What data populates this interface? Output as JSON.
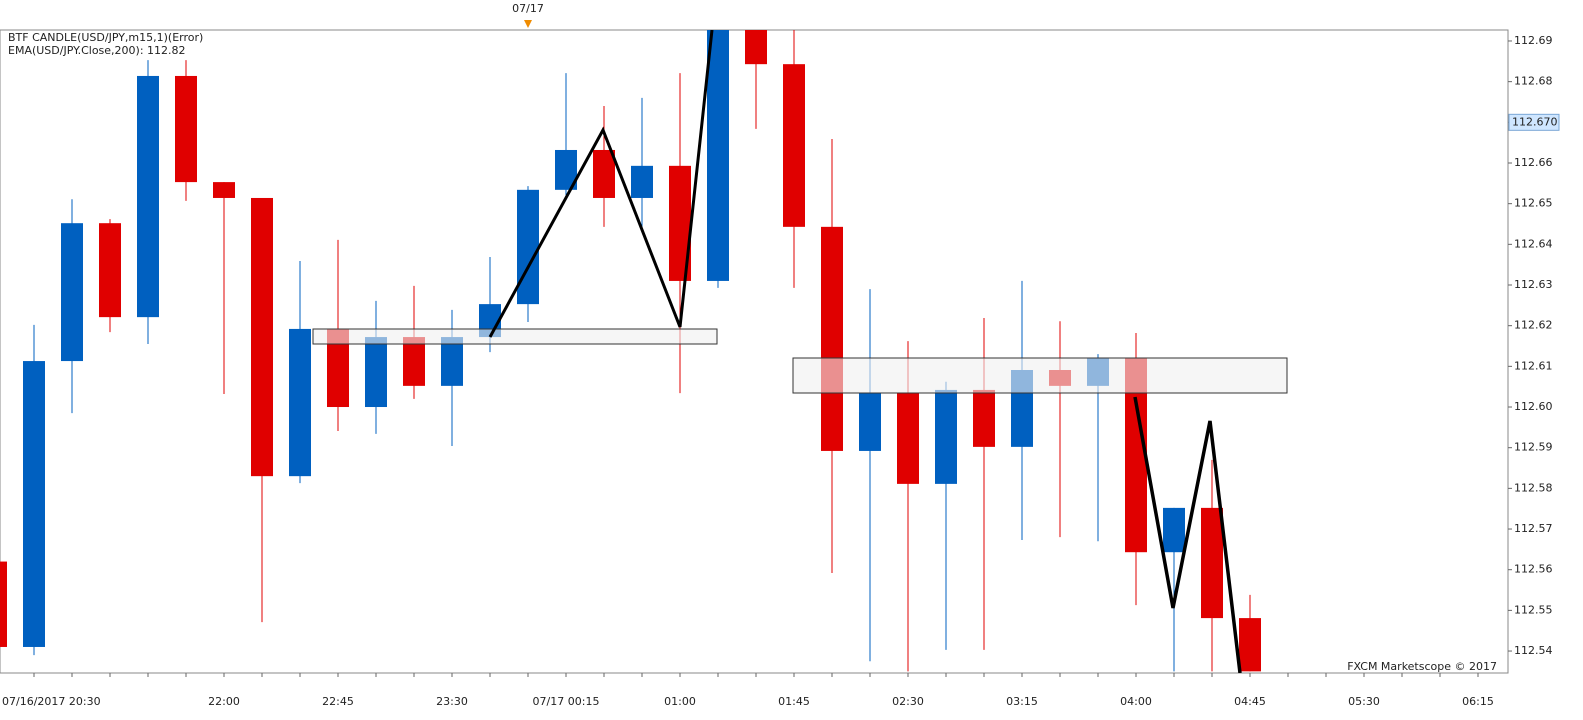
{
  "chart_data": {
    "type": "candlestick",
    "legend_lines": [
      "BTF CANDLE(USD/JPY,m15,1)(Error)",
      "EMA(USD/JPY.Close,200): 112.82"
    ],
    "date_marker": "07/17",
    "watermark": "FXCM Marketscope © 2017",
    "categories": [
      "07/16/2017 20:30",
      null,
      null,
      null,
      null,
      null,
      "22:00",
      null,
      null,
      "22:45",
      null,
      null,
      "23:30",
      null,
      null,
      "07/17 00:15",
      null,
      null,
      "01:00",
      null,
      null,
      "01:45",
      null,
      null,
      "02:30",
      null,
      null,
      "03:15",
      null,
      null,
      "04:00",
      null,
      null,
      "04:45",
      null,
      null,
      "05:30",
      null,
      null,
      "06:15"
    ],
    "open": [
      112.562,
      112.541,
      112.6113,
      112.6452,
      112.6221,
      112.6814,
      112.6553,
      112.6514,
      112.583,
      112.6192,
      112.6,
      112.6172,
      112.6052,
      112.6172,
      112.6253,
      112.6534,
      112.6632,
      112.6514,
      112.6593,
      112.631,
      112.693,
      112.6843,
      112.6443,
      112.5892,
      112.6034,
      112.5811,
      112.6042,
      112.5902,
      112.6091,
      112.6052,
      112.6121,
      112.5643,
      112.5752,
      112.5481,
      null,
      null,
      null,
      null,
      null,
      null
    ],
    "high": [
      112.562,
      112.6202,
      112.6511,
      112.6462,
      112.6853,
      112.6853,
      112.6553,
      112.6514,
      112.6359,
      112.6411,
      112.6261,
      112.6298,
      112.6239,
      112.6369,
      112.6543,
      112.6821,
      112.674,
      112.676,
      112.6821,
      112.693,
      112.693,
      112.693,
      112.6659,
      112.629,
      112.6162,
      112.6062,
      112.6219,
      112.631,
      112.6211,
      112.613,
      112.6182,
      112.5752,
      112.587,
      112.5538,
      null,
      null,
      null,
      null,
      null,
      null
    ],
    "low": [
      112.541,
      112.539,
      112.5985,
      112.6184,
      112.6155,
      112.6507,
      112.6032,
      112.5471,
      112.5813,
      112.5941,
      112.5934,
      112.602,
      112.5904,
      112.6135,
      112.6209,
      112.6521,
      112.6443,
      112.6433,
      112.6034,
      112.6293,
      112.6684,
      112.6293,
      112.5592,
      112.5375,
      112.535,
      112.5403,
      112.5403,
      112.5673,
      112.568,
      112.567,
      112.5513,
      112.535,
      112.535,
      112.535,
      null,
      null,
      null,
      null,
      null,
      null
    ],
    "close": [
      112.541,
      112.6113,
      112.6452,
      112.6221,
      112.6814,
      112.6553,
      112.6514,
      112.583,
      112.6192,
      112.6,
      112.6172,
      112.6052,
      112.6172,
      112.6253,
      112.6534,
      112.6632,
      112.6514,
      112.6593,
      112.631,
      112.693,
      112.6843,
      112.6443,
      112.5892,
      112.6034,
      112.5811,
      112.6042,
      112.5902,
      112.6091,
      112.6052,
      112.6121,
      112.5643,
      112.5752,
      112.5481,
      112.535,
      null,
      null,
      null,
      null,
      null,
      null
    ],
    "up_color": "#0060c0",
    "down_color": "#e00000",
    "ylim": [
      112.5346,
      112.6927
    ],
    "yticks": [
      112.54,
      112.55,
      112.56,
      112.57,
      112.58,
      112.59,
      {
        "value": 112.6,
        "label": "112.60"
      },
      112.61,
      112.62,
      112.63,
      112.64,
      112.65,
      112.66,
      112.67,
      112.68,
      112.69
    ],
    "last_price": {
      "value": 112.67,
      "label": "112.670"
    }
  }
}
